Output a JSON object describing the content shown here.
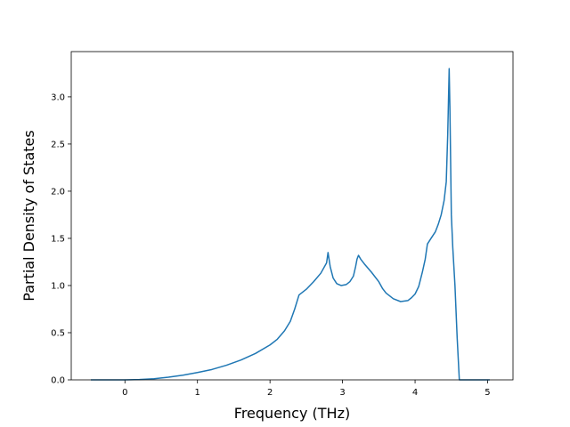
{
  "chart_data": {
    "type": "line",
    "title": "",
    "xlabel": "Frequency (THz)",
    "ylabel": "Partial Density of States",
    "xlim": [
      -0.74,
      5.35
    ],
    "ylim": [
      0.0,
      3.48
    ],
    "xticks": [
      0,
      1,
      2,
      3,
      4,
      5
    ],
    "yticks": [
      0.0,
      0.5,
      1.0,
      1.5,
      2.0,
      2.5,
      3.0
    ],
    "xtick_labels": [
      "0",
      "1",
      "2",
      "3",
      "4",
      "5"
    ],
    "ytick_labels": [
      "0.0",
      "0.5",
      "1.0",
      "1.5",
      "2.0",
      "2.5",
      "3.0"
    ],
    "grid": false,
    "color": "#1f77b4",
    "series": [
      {
        "x": [
          -0.47,
          -0.2,
          0.0,
          0.2,
          0.4,
          0.6,
          0.8,
          1.0,
          1.2,
          1.4,
          1.6,
          1.8,
          2.0,
          2.1,
          2.2,
          2.28,
          2.34,
          2.4,
          2.5,
          2.6,
          2.7,
          2.78,
          2.8,
          2.83,
          2.87,
          2.92,
          2.98,
          3.05,
          3.1,
          3.15,
          3.18,
          3.2,
          3.22,
          3.25,
          3.3,
          3.4,
          3.5,
          3.55,
          3.6,
          3.7,
          3.8,
          3.9,
          3.95,
          4.0,
          4.05,
          4.1,
          4.14,
          4.17,
          4.22,
          4.28,
          4.32,
          4.36,
          4.4,
          4.43,
          4.45,
          4.47,
          4.48,
          4.5,
          4.52,
          4.55,
          4.58,
          4.61,
          4.8,
          5.03
        ],
        "y": [
          0.0,
          0.0,
          0.0,
          0.004,
          0.012,
          0.028,
          0.05,
          0.078,
          0.11,
          0.155,
          0.21,
          0.28,
          0.37,
          0.43,
          0.52,
          0.62,
          0.75,
          0.9,
          0.96,
          1.04,
          1.13,
          1.24,
          1.35,
          1.2,
          1.08,
          1.02,
          1.0,
          1.01,
          1.04,
          1.1,
          1.2,
          1.28,
          1.32,
          1.28,
          1.23,
          1.14,
          1.04,
          0.97,
          0.92,
          0.86,
          0.83,
          0.84,
          0.87,
          0.91,
          0.99,
          1.14,
          1.28,
          1.44,
          1.5,
          1.57,
          1.65,
          1.75,
          1.9,
          2.1,
          2.6,
          3.3,
          2.9,
          1.75,
          1.4,
          1.0,
          0.45,
          0.0,
          0.0,
          0.0
        ]
      }
    ]
  }
}
